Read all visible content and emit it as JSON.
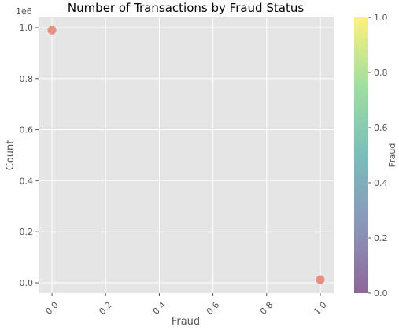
{
  "chart_data": {
    "type": "scatter",
    "title": "Number of Transactions by Fraud Status",
    "xlabel": "Fraud",
    "ylabel": "Count",
    "y_offset_label": "1e6",
    "xlim": [
      -0.05,
      1.05
    ],
    "ylim": [
      -0.04,
      1.04
    ],
    "x_ticks": [
      0.0,
      0.2,
      0.4,
      0.6,
      0.8,
      1.0
    ],
    "x_tick_labels": [
      "0.0",
      "0.2",
      "0.4",
      "0.6",
      "0.8",
      "1.0"
    ],
    "y_ticks": [
      0.0,
      0.2,
      0.4,
      0.6,
      0.8,
      1.0
    ],
    "y_tick_labels": [
      "0.0",
      "0.2",
      "0.4",
      "0.6",
      "0.8",
      "1.0"
    ],
    "points": [
      {
        "x": 0,
        "y": 0.99
      },
      {
        "x": 1,
        "y": 0.012
      }
    ],
    "point_color": "#e8806f",
    "background_color": "#e5e5e5",
    "grid": true,
    "colorbar": {
      "label": "Fraud",
      "range": [
        0.0,
        1.0
      ],
      "ticks": [
        0.0,
        0.2,
        0.4,
        0.6,
        0.8,
        1.0
      ],
      "tick_labels": [
        "0.0",
        "0.2",
        "0.4",
        "0.6",
        "0.8",
        "1.0"
      ],
      "colormap": "viridis",
      "alpha": 0.6
    }
  }
}
